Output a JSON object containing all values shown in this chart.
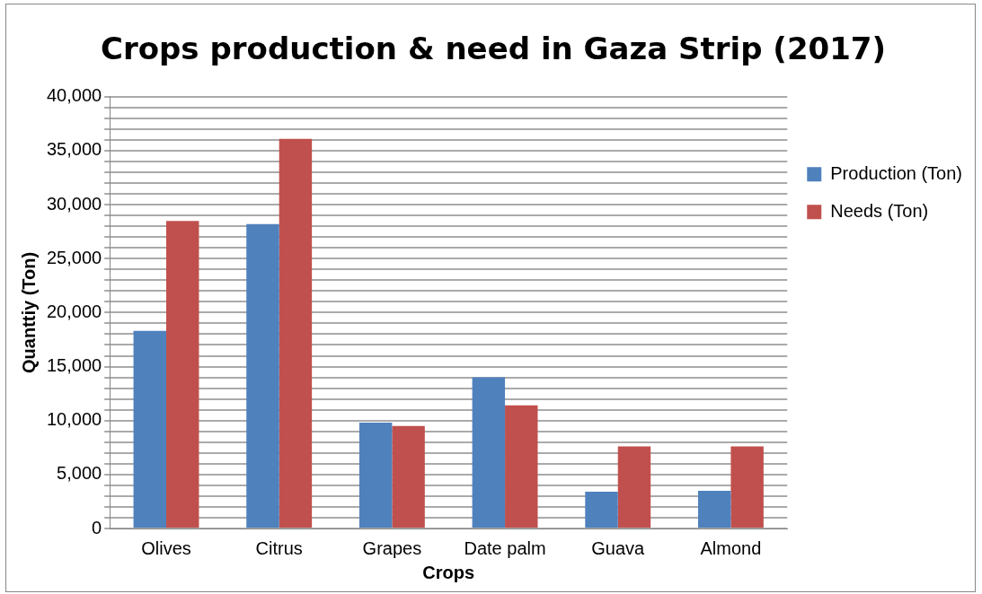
{
  "chart_data": {
    "type": "bar",
    "title": "Crops production & need in Gaza Strip (2017)",
    "xlabel": "Crops",
    "ylabel": "Quanttiy (Ton)",
    "categories": [
      "Olives",
      "Citrus",
      "Grapes",
      "Date palm",
      "Guava",
      "Almond"
    ],
    "series": [
      {
        "name": "Production (Ton)",
        "color": "#4f81bd",
        "values": [
          18300,
          28200,
          9800,
          14000,
          3400,
          3500
        ]
      },
      {
        "name": "Needs (Ton)",
        "color": "#c0504d",
        "values": [
          28500,
          36100,
          9500,
          11400,
          7600,
          7600
        ]
      }
    ],
    "ylim": [
      0,
      40000
    ],
    "yticks": [
      0,
      {
        "value": 1000,
        "label": null
      },
      {
        "value": 2000,
        "label": null
      },
      {
        "value": 3000,
        "label": null
      },
      {
        "value": 4000,
        "label": null
      },
      {
        "value": 5000,
        "label": "5,000"
      },
      {
        "value": 6000,
        "label": null
      },
      {
        "value": 7000,
        "label": null
      },
      {
        "value": 8000,
        "label": null
      },
      {
        "value": 9000,
        "label": null
      },
      {
        "value": 10000,
        "label": "10,000"
      },
      {
        "value": 11000,
        "label": null
      },
      {
        "value": 12000,
        "label": null
      },
      {
        "value": 13000,
        "label": null
      },
      {
        "value": 14000,
        "label": null
      },
      {
        "value": 15000,
        "label": "15,000"
      },
      {
        "value": 16000,
        "label": null
      },
      {
        "value": 17000,
        "label": null
      },
      {
        "value": 18000,
        "label": null
      },
      {
        "value": 19000,
        "label": null
      },
      {
        "value": 20000,
        "label": "20,000"
      },
      {
        "value": 21000,
        "label": null
      },
      {
        "value": 22000,
        "label": null
      },
      {
        "value": 23000,
        "label": null
      },
      {
        "value": 24000,
        "label": null
      },
      {
        "value": 25000,
        "label": "25,000"
      },
      {
        "value": 26000,
        "label": null
      },
      {
        "value": 27000,
        "label": null
      },
      {
        "value": 28000,
        "label": null
      },
      {
        "value": 29000,
        "label": null
      },
      {
        "value": 30000,
        "label": "30,000"
      },
      {
        "value": 31000,
        "label": null
      },
      {
        "value": 32000,
        "label": null
      },
      {
        "value": 33000,
        "label": null
      },
      {
        "value": 34000,
        "label": null
      },
      {
        "value": 35000,
        "label": "35,000"
      },
      {
        "value": 36000,
        "label": null
      },
      {
        "value": 37000,
        "label": null
      },
      {
        "value": 38000,
        "label": null
      },
      {
        "value": 39000,
        "label": null
      },
      {
        "value": 40000,
        "label": "40,000"
      }
    ],
    "grid": "y",
    "legend": "right"
  }
}
